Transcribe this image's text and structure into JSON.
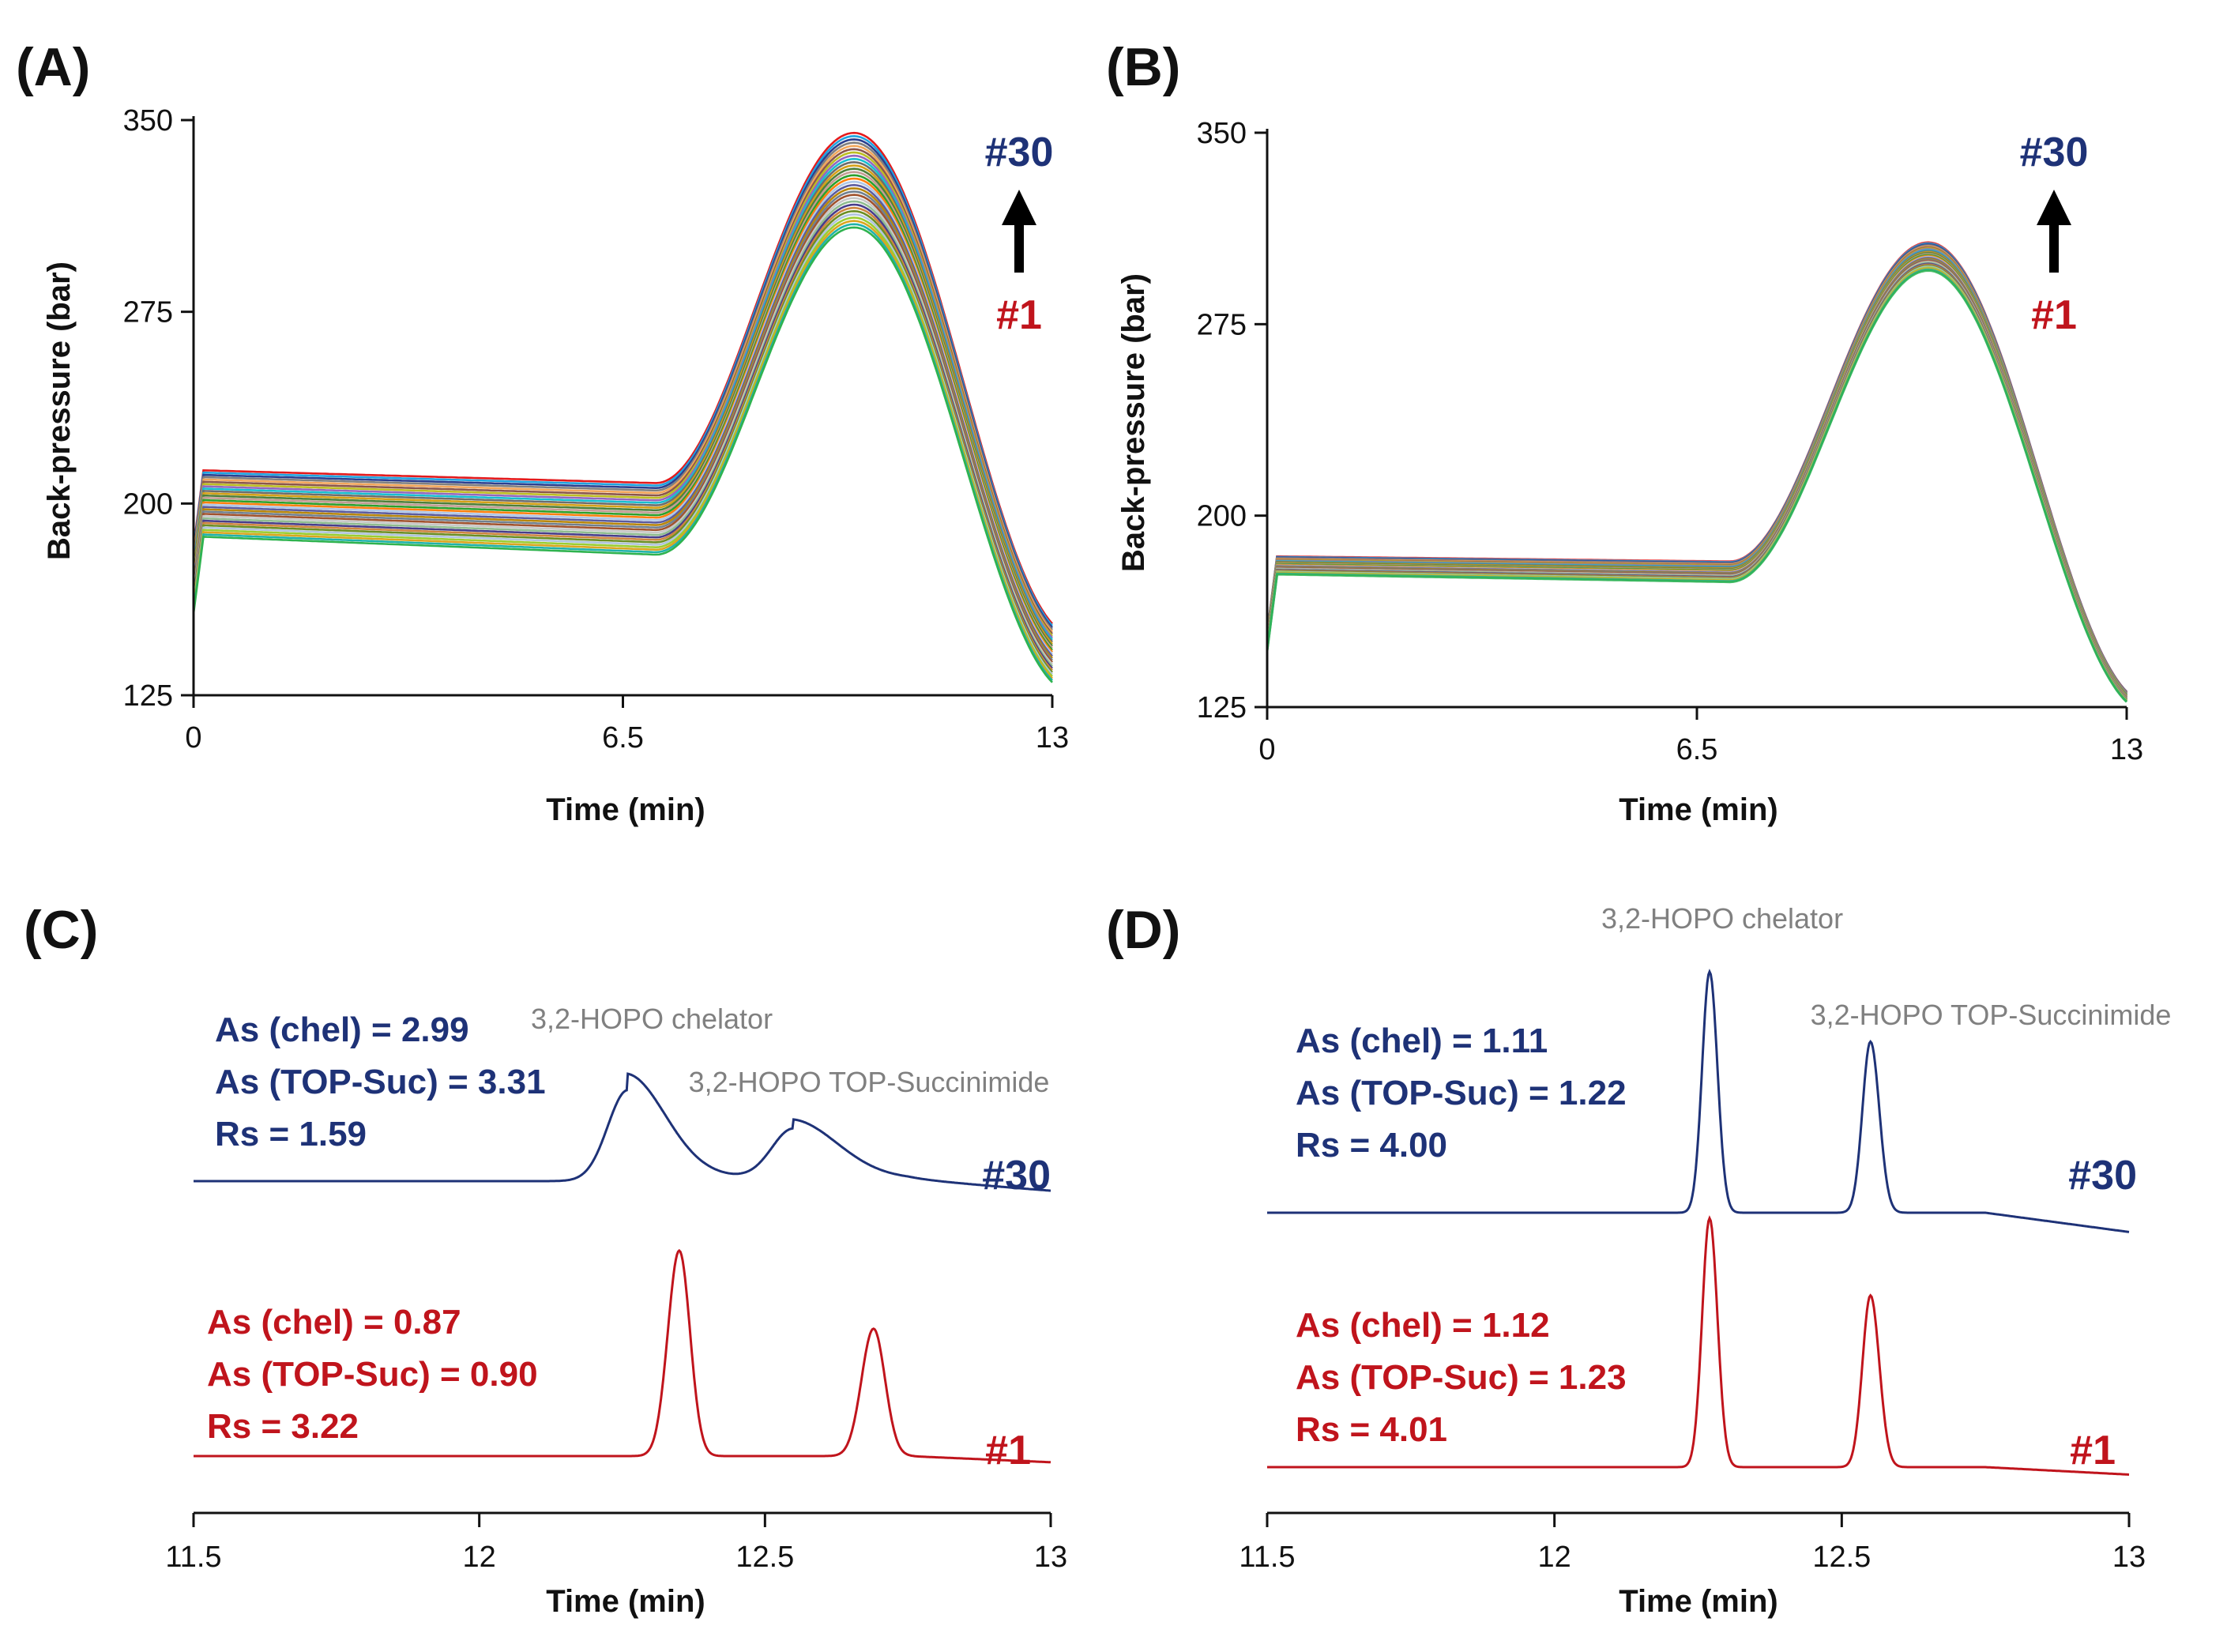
{
  "colors": {
    "run1": "#c0141c",
    "run30": "#1e3277",
    "peak_label": "#808080",
    "axis": "#111111",
    "arrow": "#000000",
    "trace_palette": [
      "#e41a1c",
      "#1fa3e0",
      "#2b3f8f",
      "#7f7f7f",
      "#f2a65a",
      "#8c564b",
      "#bcbd22",
      "#9467bd",
      "#17becf",
      "#6d6d6d",
      "#d4a017",
      "#4e7f3a",
      "#c49c94",
      "#2ca02c",
      "#ff7f0e",
      "#aec7e8",
      "#5b5b9e",
      "#b8860b",
      "#708090",
      "#a0522d",
      "#c7c7c7",
      "#8fbc8f",
      "#483d8b",
      "#cd853f",
      "#6b8e23",
      "#b0c4de",
      "#9acd32",
      "#daa520",
      "#20b2aa",
      "#2fb34f"
    ]
  },
  "panels": {
    "A": {
      "label": "(A)",
      "run_top": "#30",
      "run_bottom": "#1"
    },
    "B": {
      "label": "(B)",
      "run_top": "#30",
      "run_bottom": "#1"
    },
    "C": {
      "label": "(C)",
      "top": {
        "lines": [
          "As (chel) = 2.99",
          "As (TOP-Suc) = 3.31",
          "Rs = 1.59"
        ],
        "run": "#30"
      },
      "bottom": {
        "lines": [
          "As (chel) = 0.87",
          "As (TOP-Suc) = 0.90",
          "Rs = 3.22"
        ],
        "run": "#1"
      },
      "peak1": "3,2-HOPO chelator",
      "peak2": "3,2-HOPO TOP-Succinimide"
    },
    "D": {
      "label": "(D)",
      "top": {
        "lines": [
          "As (chel) = 1.11",
          "As (TOP-Suc) = 1.22",
          "Rs = 4.00"
        ],
        "run": "#30"
      },
      "bottom": {
        "lines": [
          "As (chel) = 1.12",
          "As (TOP-Suc) = 1.23",
          "Rs = 4.01"
        ],
        "run": "#1"
      },
      "peak1": "3,2-HOPO chelator",
      "peak2": "3,2-HOPO TOP-Succinimide"
    }
  },
  "chart_data": [
    {
      "panel": "A",
      "type": "line",
      "xlabel": "Time (min)",
      "ylabel": "Back-pressure (bar)",
      "xlim": [
        0,
        13
      ],
      "ylim": [
        125,
        350
      ],
      "xticks": [
        "0",
        "6.5",
        "13"
      ],
      "yticks": [
        "125",
        "200",
        "275",
        "350"
      ],
      "series_count": 30,
      "profile": {
        "plateau_top": 213,
        "plateau_bottom": 187,
        "plateau_end_top": 208,
        "plateau_end_bottom": 180,
        "peak_time": 10.0,
        "peak_top": 345,
        "peak_bottom": 308,
        "end_top": 153,
        "end_bottom": 130
      }
    },
    {
      "panel": "B",
      "type": "line",
      "xlabel": "Time (min)",
      "ylabel": "Back-pressure (bar)",
      "xlim": [
        0,
        13
      ],
      "ylim": [
        125,
        350
      ],
      "xticks": [
        "0",
        "6.5",
        "13"
      ],
      "yticks": [
        "125",
        "200",
        "275",
        "350"
      ],
      "series_count": 30,
      "profile": {
        "plateau_top": 184,
        "plateau_bottom": 177,
        "plateau_end_top": 182,
        "plateau_end_bottom": 174,
        "peak_time": 10.0,
        "peak_top": 307,
        "peak_bottom": 296,
        "end_top": 131,
        "end_bottom": 127
      }
    },
    {
      "panel": "C",
      "type": "line",
      "xlabel": "Time (min)",
      "xlim": [
        11.5,
        13
      ],
      "xticks": [
        "11.5",
        "12",
        "12.5",
        "13"
      ],
      "series": [
        {
          "name": "#30",
          "peaks": [
            {
              "rt": 12.26,
              "height": 0.72,
              "width": 0.035,
              "tail": 2.99
            },
            {
              "rt": 12.55,
              "height": 0.4,
              "width": 0.038,
              "tail": 3.31
            }
          ]
        },
        {
          "name": "#1",
          "peaks": [
            {
              "rt": 12.35,
              "height": 1.0,
              "width": 0.02,
              "tail": 0.87
            },
            {
              "rt": 12.69,
              "height": 0.62,
              "width": 0.021,
              "tail": 0.9
            }
          ]
        }
      ]
    },
    {
      "panel": "D",
      "type": "line",
      "xlabel": "Time (min)",
      "xlim": [
        11.5,
        13
      ],
      "xticks": [
        "11.5",
        "12",
        "12.5",
        "13"
      ],
      "series": [
        {
          "name": "#30",
          "peaks": [
            {
              "rt": 12.27,
              "height": 1.0,
              "width": 0.013,
              "tail": 1.11
            },
            {
              "rt": 12.55,
              "height": 0.71,
              "width": 0.014,
              "tail": 1.22
            }
          ]
        },
        {
          "name": "#1",
          "peaks": [
            {
              "rt": 12.27,
              "height": 1.0,
              "width": 0.013,
              "tail": 1.12
            },
            {
              "rt": 12.55,
              "height": 0.69,
              "width": 0.014,
              "tail": 1.23
            }
          ]
        }
      ]
    }
  ]
}
